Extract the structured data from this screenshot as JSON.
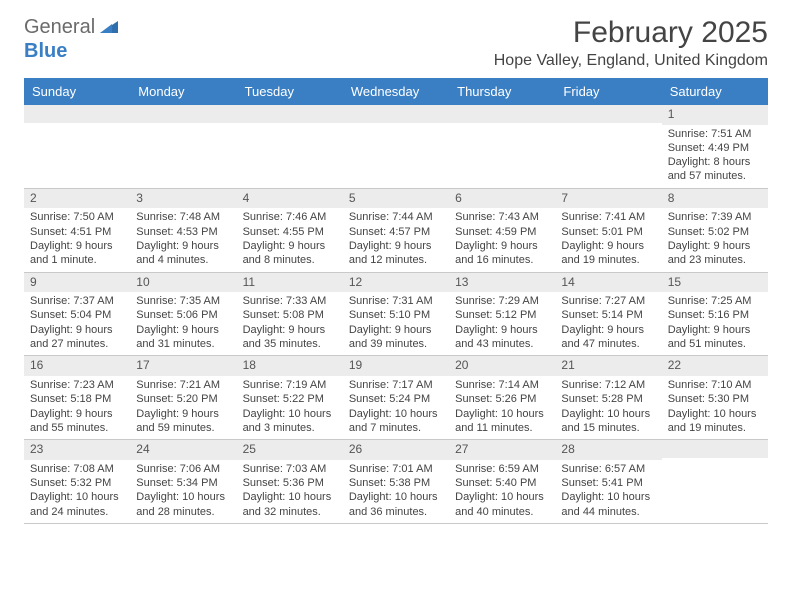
{
  "logo": {
    "text1": "General",
    "text2": "Blue"
  },
  "title": "February 2025",
  "location": "Hope Valley, England, United Kingdom",
  "colors": {
    "header_bg": "#3a7fc4",
    "header_fg": "#ffffff",
    "daynum_bg": "#ececec",
    "border": "#c9c9c9",
    "page_bg": "#ffffff"
  },
  "fonts": {
    "title_size_pt": 22,
    "location_size_pt": 12,
    "dow_size_pt": 10,
    "body_size_pt": 8
  },
  "dow": [
    "Sunday",
    "Monday",
    "Tuesday",
    "Wednesday",
    "Thursday",
    "Friday",
    "Saturday"
  ],
  "weeks": [
    [
      {
        "n": "",
        "sr": "",
        "ss": "",
        "dl": ""
      },
      {
        "n": "",
        "sr": "",
        "ss": "",
        "dl": ""
      },
      {
        "n": "",
        "sr": "",
        "ss": "",
        "dl": ""
      },
      {
        "n": "",
        "sr": "",
        "ss": "",
        "dl": ""
      },
      {
        "n": "",
        "sr": "",
        "ss": "",
        "dl": ""
      },
      {
        "n": "",
        "sr": "",
        "ss": "",
        "dl": ""
      },
      {
        "n": "1",
        "sr": "Sunrise: 7:51 AM",
        "ss": "Sunset: 4:49 PM",
        "dl": "Daylight: 8 hours and 57 minutes."
      }
    ],
    [
      {
        "n": "2",
        "sr": "Sunrise: 7:50 AM",
        "ss": "Sunset: 4:51 PM",
        "dl": "Daylight: 9 hours and 1 minute."
      },
      {
        "n": "3",
        "sr": "Sunrise: 7:48 AM",
        "ss": "Sunset: 4:53 PM",
        "dl": "Daylight: 9 hours and 4 minutes."
      },
      {
        "n": "4",
        "sr": "Sunrise: 7:46 AM",
        "ss": "Sunset: 4:55 PM",
        "dl": "Daylight: 9 hours and 8 minutes."
      },
      {
        "n": "5",
        "sr": "Sunrise: 7:44 AM",
        "ss": "Sunset: 4:57 PM",
        "dl": "Daylight: 9 hours and 12 minutes."
      },
      {
        "n": "6",
        "sr": "Sunrise: 7:43 AM",
        "ss": "Sunset: 4:59 PM",
        "dl": "Daylight: 9 hours and 16 minutes."
      },
      {
        "n": "7",
        "sr": "Sunrise: 7:41 AM",
        "ss": "Sunset: 5:01 PM",
        "dl": "Daylight: 9 hours and 19 minutes."
      },
      {
        "n": "8",
        "sr": "Sunrise: 7:39 AM",
        "ss": "Sunset: 5:02 PM",
        "dl": "Daylight: 9 hours and 23 minutes."
      }
    ],
    [
      {
        "n": "9",
        "sr": "Sunrise: 7:37 AM",
        "ss": "Sunset: 5:04 PM",
        "dl": "Daylight: 9 hours and 27 minutes."
      },
      {
        "n": "10",
        "sr": "Sunrise: 7:35 AM",
        "ss": "Sunset: 5:06 PM",
        "dl": "Daylight: 9 hours and 31 minutes."
      },
      {
        "n": "11",
        "sr": "Sunrise: 7:33 AM",
        "ss": "Sunset: 5:08 PM",
        "dl": "Daylight: 9 hours and 35 minutes."
      },
      {
        "n": "12",
        "sr": "Sunrise: 7:31 AM",
        "ss": "Sunset: 5:10 PM",
        "dl": "Daylight: 9 hours and 39 minutes."
      },
      {
        "n": "13",
        "sr": "Sunrise: 7:29 AM",
        "ss": "Sunset: 5:12 PM",
        "dl": "Daylight: 9 hours and 43 minutes."
      },
      {
        "n": "14",
        "sr": "Sunrise: 7:27 AM",
        "ss": "Sunset: 5:14 PM",
        "dl": "Daylight: 9 hours and 47 minutes."
      },
      {
        "n": "15",
        "sr": "Sunrise: 7:25 AM",
        "ss": "Sunset: 5:16 PM",
        "dl": "Daylight: 9 hours and 51 minutes."
      }
    ],
    [
      {
        "n": "16",
        "sr": "Sunrise: 7:23 AM",
        "ss": "Sunset: 5:18 PM",
        "dl": "Daylight: 9 hours and 55 minutes."
      },
      {
        "n": "17",
        "sr": "Sunrise: 7:21 AM",
        "ss": "Sunset: 5:20 PM",
        "dl": "Daylight: 9 hours and 59 minutes."
      },
      {
        "n": "18",
        "sr": "Sunrise: 7:19 AM",
        "ss": "Sunset: 5:22 PM",
        "dl": "Daylight: 10 hours and 3 minutes."
      },
      {
        "n": "19",
        "sr": "Sunrise: 7:17 AM",
        "ss": "Sunset: 5:24 PM",
        "dl": "Daylight: 10 hours and 7 minutes."
      },
      {
        "n": "20",
        "sr": "Sunrise: 7:14 AM",
        "ss": "Sunset: 5:26 PM",
        "dl": "Daylight: 10 hours and 11 minutes."
      },
      {
        "n": "21",
        "sr": "Sunrise: 7:12 AM",
        "ss": "Sunset: 5:28 PM",
        "dl": "Daylight: 10 hours and 15 minutes."
      },
      {
        "n": "22",
        "sr": "Sunrise: 7:10 AM",
        "ss": "Sunset: 5:30 PM",
        "dl": "Daylight: 10 hours and 19 minutes."
      }
    ],
    [
      {
        "n": "23",
        "sr": "Sunrise: 7:08 AM",
        "ss": "Sunset: 5:32 PM",
        "dl": "Daylight: 10 hours and 24 minutes."
      },
      {
        "n": "24",
        "sr": "Sunrise: 7:06 AM",
        "ss": "Sunset: 5:34 PM",
        "dl": "Daylight: 10 hours and 28 minutes."
      },
      {
        "n": "25",
        "sr": "Sunrise: 7:03 AM",
        "ss": "Sunset: 5:36 PM",
        "dl": "Daylight: 10 hours and 32 minutes."
      },
      {
        "n": "26",
        "sr": "Sunrise: 7:01 AM",
        "ss": "Sunset: 5:38 PM",
        "dl": "Daylight: 10 hours and 36 minutes."
      },
      {
        "n": "27",
        "sr": "Sunrise: 6:59 AM",
        "ss": "Sunset: 5:40 PM",
        "dl": "Daylight: 10 hours and 40 minutes."
      },
      {
        "n": "28",
        "sr": "Sunrise: 6:57 AM",
        "ss": "Sunset: 5:41 PM",
        "dl": "Daylight: 10 hours and 44 minutes."
      },
      {
        "n": "",
        "sr": "",
        "ss": "",
        "dl": ""
      }
    ]
  ]
}
